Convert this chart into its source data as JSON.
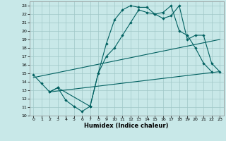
{
  "background_color": "#c8e8e8",
  "grid_color": "#a0c8c8",
  "line_color": "#006060",
  "xlabel": "Humidex (Indice chaleur)",
  "xlim": [
    -0.5,
    23.5
  ],
  "ylim": [
    10,
    23.5
  ],
  "yticks": [
    10,
    11,
    12,
    13,
    14,
    15,
    16,
    17,
    18,
    19,
    20,
    21,
    22,
    23
  ],
  "xticks": [
    0,
    1,
    2,
    3,
    4,
    5,
    6,
    7,
    8,
    9,
    10,
    11,
    12,
    13,
    14,
    15,
    16,
    17,
    18,
    19,
    20,
    21,
    22,
    23
  ],
  "line1_x": [
    0,
    1,
    2,
    3,
    4,
    5,
    6,
    7,
    8,
    9,
    10,
    11,
    12,
    13,
    14,
    15,
    16,
    17,
    18,
    19,
    20,
    21,
    22
  ],
  "line1_y": [
    14.8,
    13.8,
    12.8,
    13.3,
    11.8,
    11.1,
    10.5,
    11.1,
    15.0,
    18.5,
    21.3,
    22.5,
    23.0,
    22.8,
    22.8,
    22.0,
    22.2,
    23.0,
    20.0,
    19.5,
    18.0,
    16.2,
    15.2
  ],
  "line2_x": [
    2,
    3,
    7,
    8,
    9,
    10,
    11,
    12,
    13,
    14,
    15,
    16,
    17,
    18,
    19,
    20,
    21,
    22,
    23
  ],
  "line2_y": [
    12.8,
    13.3,
    11.1,
    15.0,
    17.0,
    18.0,
    19.5,
    21.0,
    22.5,
    22.2,
    22.0,
    21.5,
    21.8,
    23.0,
    19.0,
    19.5,
    19.5,
    16.2,
    15.2
  ],
  "line3_x": [
    0,
    23
  ],
  "line3_y": [
    14.5,
    19.0
  ],
  "line4_x": [
    2,
    23
  ],
  "line4_y": [
    12.8,
    15.2
  ]
}
